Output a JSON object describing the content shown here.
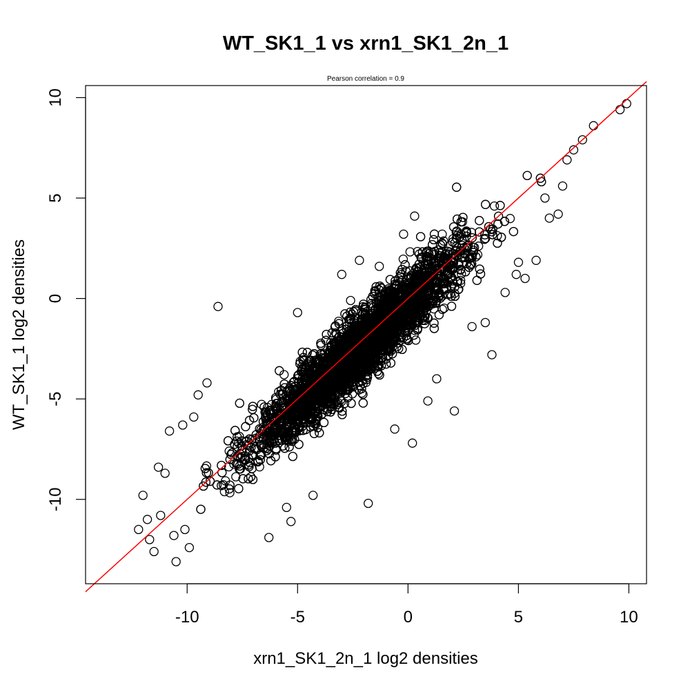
{
  "chart_data": {
    "type": "scatter",
    "title": "WT_SK1_1 vs xrn1_SK1_2n_1",
    "subtitle": "Pearson correlation =  0.9",
    "xlabel": "xrn1_SK1_2n_1 log2 densities",
    "ylabel": "WT_SK1_1 log2 densities",
    "xlim": [
      -14.6,
      10.8
    ],
    "ylim": [
      -14.2,
      10.6
    ],
    "x_ticks": [
      -10,
      -5,
      0,
      5,
      10
    ],
    "y_ticks": [
      -10,
      -5,
      0,
      5,
      10
    ],
    "x_tick_labels": [
      "-10",
      "-5",
      "0",
      "5",
      "10"
    ],
    "y_tick_labels": [
      "-10",
      "-5",
      "0",
      "5",
      "10"
    ],
    "grid": false,
    "point_color": "#000000",
    "line_color": "#ff0000",
    "reference_line": {
      "slope": 1,
      "intercept": 0
    },
    "bulk_cloud": {
      "n": 6000,
      "x_center": -2.2,
      "x_sd": 2.3,
      "x_range": [
        -9.5,
        6.5
      ],
      "y_slope": 1.0,
      "y_intercept": -0.3,
      "y_residual_sd": 0.85
    },
    "points": [
      {
        "x": -12.2,
        "y": -11.5
      },
      {
        "x": -12.0,
        "y": -9.8
      },
      {
        "x": -11.8,
        "y": -11.0
      },
      {
        "x": -11.7,
        "y": -12.0
      },
      {
        "x": -11.5,
        "y": -12.6
      },
      {
        "x": -11.3,
        "y": -8.4
      },
      {
        "x": -11.2,
        "y": -10.8
      },
      {
        "x": -11.0,
        "y": -8.7
      },
      {
        "x": -10.8,
        "y": -6.6
      },
      {
        "x": -10.6,
        "y": -11.8
      },
      {
        "x": -10.5,
        "y": -13.1
      },
      {
        "x": -10.2,
        "y": -6.3
      },
      {
        "x": -10.1,
        "y": -11.5
      },
      {
        "x": -9.9,
        "y": -12.4
      },
      {
        "x": -9.7,
        "y": -5.9
      },
      {
        "x": -9.5,
        "y": -4.8
      },
      {
        "x": -9.1,
        "y": -4.2
      },
      {
        "x": -8.6,
        "y": -0.4
      },
      {
        "x": -6.3,
        "y": -11.9
      },
      {
        "x": -5.5,
        "y": -10.4
      },
      {
        "x": -5.3,
        "y": -11.1
      },
      {
        "x": -5.0,
        "y": -0.7
      },
      {
        "x": -4.3,
        "y": -9.8
      },
      {
        "x": -3.5,
        "y": -2.2
      },
      {
        "x": -3.0,
        "y": 1.2
      },
      {
        "x": -2.6,
        "y": -0.1
      },
      {
        "x": -2.2,
        "y": 1.9
      },
      {
        "x": -1.8,
        "y": -10.2
      },
      {
        "x": -1.3,
        "y": 1.6
      },
      {
        "x": -0.6,
        "y": -6.5
      },
      {
        "x": -0.2,
        "y": 3.2
      },
      {
        "x": 0.2,
        "y": -7.2
      },
      {
        "x": 0.3,
        "y": 4.1
      },
      {
        "x": 0.9,
        "y": -5.1
      },
      {
        "x": 1.3,
        "y": -4.0
      },
      {
        "x": 2.1,
        "y": -5.6
      },
      {
        "x": 2.9,
        "y": -1.4
      },
      {
        "x": 3.5,
        "y": -1.2
      },
      {
        "x": 3.8,
        "y": -2.8
      },
      {
        "x": 4.4,
        "y": 0.3
      },
      {
        "x": 4.9,
        "y": 1.2
      },
      {
        "x": 5.0,
        "y": 1.8
      },
      {
        "x": 5.3,
        "y": 1.0
      },
      {
        "x": 5.8,
        "y": 1.9
      },
      {
        "x": 6.2,
        "y": 5.0
      },
      {
        "x": 6.4,
        "y": 4.0
      },
      {
        "x": 6.8,
        "y": 4.2
      },
      {
        "x": 7.0,
        "y": 5.6
      },
      {
        "x": 7.2,
        "y": 6.9
      },
      {
        "x": 7.5,
        "y": 7.4
      },
      {
        "x": 7.9,
        "y": 7.9
      },
      {
        "x": 8.4,
        "y": 8.6
      },
      {
        "x": 9.6,
        "y": 9.4
      },
      {
        "x": 9.9,
        "y": 9.7
      }
    ]
  }
}
